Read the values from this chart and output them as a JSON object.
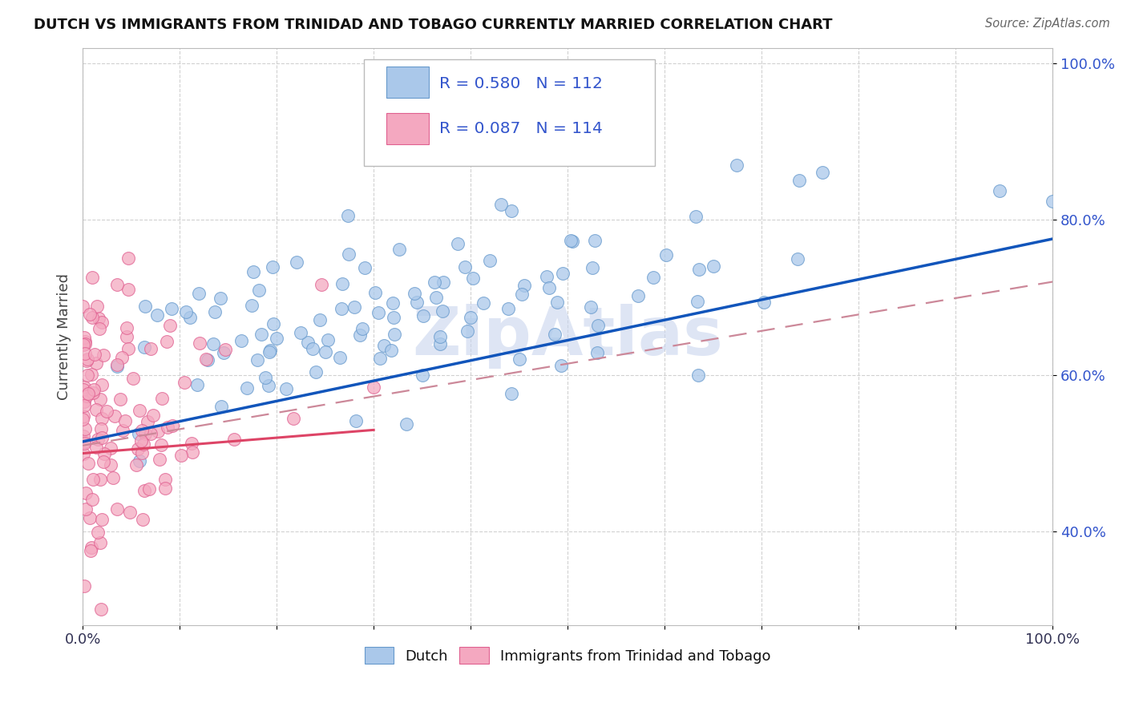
{
  "title": "DUTCH VS IMMIGRANTS FROM TRINIDAD AND TOBAGO CURRENTLY MARRIED CORRELATION CHART",
  "source_text": "Source: ZipAtlas.com",
  "ylabel": "Currently Married",
  "xlim": [
    0.0,
    1.0
  ],
  "ylim": [
    0.28,
    1.02
  ],
  "x_ticks": [
    0.0,
    0.1,
    0.2,
    0.3,
    0.4,
    0.5,
    0.6,
    0.7,
    0.8,
    0.9,
    1.0
  ],
  "x_tick_labels": [
    "0.0%",
    "",
    "",
    "",
    "",
    "",
    "",
    "",
    "",
    "",
    "100.0%"
  ],
  "y_ticks": [
    0.4,
    0.6,
    0.8,
    1.0
  ],
  "y_tick_labels": [
    "40.0%",
    "60.0%",
    "80.0%",
    "100.0%"
  ],
  "dutch_color": "#aac8ea",
  "dutch_edge_color": "#6699cc",
  "imm_color": "#f4a8c0",
  "imm_edge_color": "#e06090",
  "blue_line_color": "#1155bb",
  "pink_line_color": "#dd4466",
  "dashed_line_color": "#cc8899",
  "legend_text_color": "#3355cc",
  "watermark_text": "ZipAtlas",
  "watermark_color": "#c8d4ee",
  "background_color": "#ffffff",
  "legend_R1": "R = 0.580",
  "legend_N1": "N = 112",
  "legend_R2": "R = 0.087",
  "legend_N2": "N = 114",
  "dutch_seed": 42,
  "imm_seed": 99,
  "dutch_n": 112,
  "imm_n": 114,
  "dutch_line_x0": 0.0,
  "dutch_line_x1": 1.0,
  "dutch_line_y0": 0.515,
  "dutch_line_y1": 0.775,
  "pink_line_x0": 0.0,
  "pink_line_x1": 0.3,
  "pink_line_y0": 0.5,
  "pink_line_y1": 0.53,
  "dashed_line_x0": 0.0,
  "dashed_line_x1": 1.0,
  "dashed_line_y0": 0.51,
  "dashed_line_y1": 0.72
}
